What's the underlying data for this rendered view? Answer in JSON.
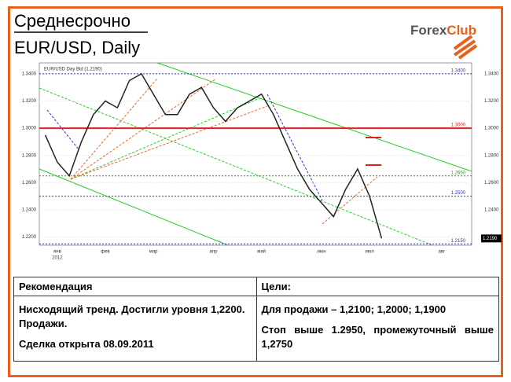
{
  "header": {
    "title": "Среднесрочно",
    "subtitle": "EUR/USD, Daily",
    "logo_left": "Forex",
    "logo_right": "Club"
  },
  "chart_data": {
    "type": "line",
    "title": "EUR/USD Day Bid (1.2190)",
    "color": "#222222",
    "categories": [
      null,
      "янв",
      null,
      null,
      null,
      "фев",
      null,
      null,
      null,
      "мар",
      null,
      null,
      null,
      null,
      "апр",
      null,
      null,
      null,
      "май",
      null,
      null,
      null,
      null,
      "июн",
      null,
      null,
      null,
      "июл",
      null,
      null,
      null,
      null,
      null,
      "авг",
      null,
      null
    ],
    "year_label": "2012",
    "series": [
      {
        "name": "EUR/USD",
        "color": "#222222",
        "values": [
          1.295,
          1.275,
          1.265,
          1.29,
          1.31,
          1.32,
          1.315,
          1.335,
          1.34,
          1.325,
          1.31,
          1.31,
          1.325,
          1.33,
          1.315,
          1.305,
          1.315,
          1.32,
          1.325,
          1.31,
          1.29,
          1.27,
          1.255,
          1.245,
          1.235,
          1.255,
          1.27,
          1.25,
          1.219,
          null,
          null,
          null,
          null,
          null,
          null,
          null
        ]
      }
    ],
    "ylim": [
      1.214,
      1.348
    ],
    "yticks": [
      {
        "value": 1.34,
        "label": "1.3400"
      },
      {
        "value": 1.32,
        "label": "1.3200"
      },
      {
        "value": 1.3,
        "label": "1.3000"
      },
      {
        "value": 1.28,
        "label": "1.2800"
      },
      {
        "value": 1.26,
        "label": "1.2600"
      },
      {
        "value": 1.24,
        "label": "1.2400"
      },
      {
        "value": 1.22,
        "label": "1.2200"
      }
    ],
    "levels": [
      {
        "value": 1.34,
        "label": "1.3400",
        "color": "#3333cc"
      },
      {
        "value": 1.3,
        "label": "1.3000",
        "color": "#dd2222"
      },
      {
        "value": 1.265,
        "label": "1.2650",
        "color": "#22aa22"
      },
      {
        "value": 1.25,
        "label": "1.2500",
        "color": "#3333cc"
      },
      {
        "value": 1.215,
        "label": "1.2150",
        "color": "#3333cc"
      }
    ],
    "last_price": {
      "value": 1.219,
      "label": "1.2190"
    }
  },
  "table": {
    "headers": [
      "Рекомендация",
      "Цели:"
    ],
    "left": [
      "Нисходящий тренд. Достигли уровня 1,2200. Продажи.",
      "Сделка открыта 08.09.2011"
    ],
    "right": [
      "Для продажи – 1,2100; 1,2000; 1,1900",
      "Стоп выше 1.2950, промежуточный выше 1,2750"
    ]
  }
}
